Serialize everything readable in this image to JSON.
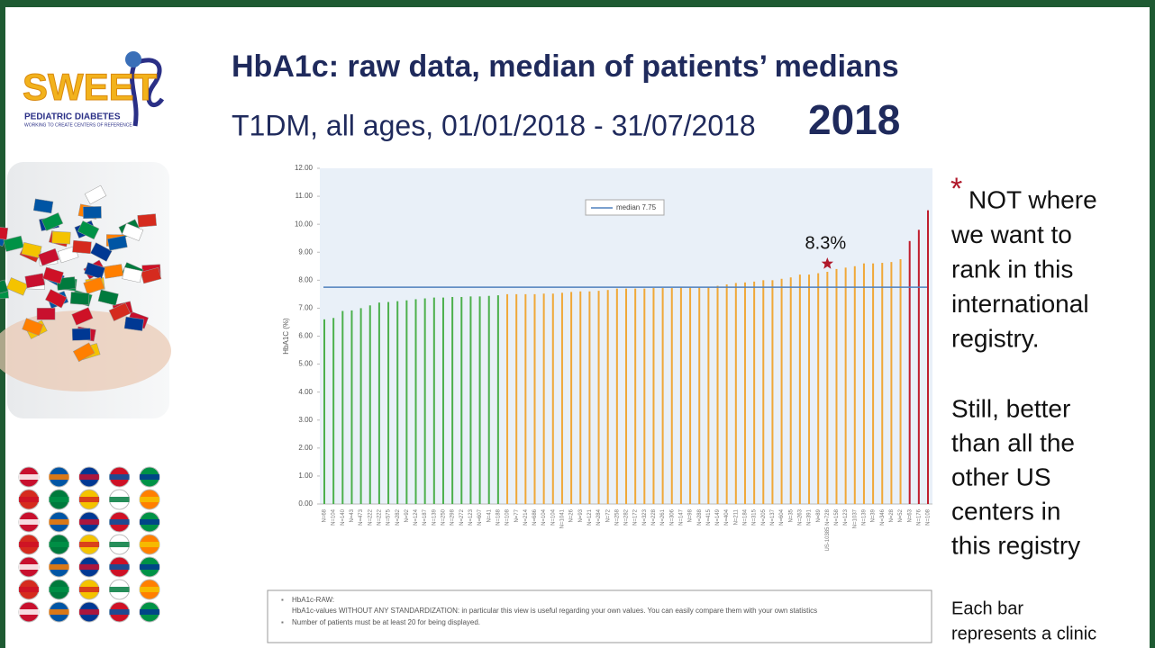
{
  "header": {
    "logo_word": "SWEET",
    "logo_line1": "PEDIATRIC DIABETES",
    "logo_line2": "WORKING TO CREATE CENTERS OF REFERENCE",
    "title": "HbA1c: raw data, median of patients’ medians",
    "subtitle": "T1DM, all ages, 01/01/2018 - 31/07/2018",
    "year": "2018"
  },
  "chart_data": {
    "type": "bar",
    "y_label": "HbA1C (%)",
    "ylim": [
      0,
      12
    ],
    "yticks": [
      {
        "value": 0,
        "label": "0.00"
      },
      {
        "value": 1,
        "label": "1.00"
      },
      {
        "value": 2,
        "label": "2.00"
      },
      {
        "value": 3,
        "label": "3.00"
      },
      {
        "value": 4,
        "label": "4.00"
      },
      {
        "value": 5,
        "label": "5.00"
      },
      {
        "value": 6,
        "label": "6.00"
      },
      {
        "value": 7,
        "label": "7.00"
      },
      {
        "value": 8,
        "label": "8.00"
      },
      {
        "value": 9,
        "label": "9.00"
      },
      {
        "value": 10,
        "label": "10.00"
      },
      {
        "value": 11,
        "label": "11.00"
      },
      {
        "value": 12,
        "label": "12.00"
      }
    ],
    "categories": [
      "N=68",
      "N=104",
      "N=140",
      "N=43",
      "N=473",
      "N=222",
      "N=222",
      "N=575",
      "N=282",
      "N=92",
      "N=124",
      "N=187",
      "N=139",
      "N=250",
      "N=298",
      "N=272",
      "N=123",
      "N=607",
      "N=41",
      "N=188",
      "N=108",
      "N=77",
      "N=214",
      "N=686",
      "N=104",
      "N=104",
      "N=1041",
      "N=26",
      "N=93",
      "N=121",
      "N=284",
      "N=72",
      "N=258",
      "N=282",
      "N=172",
      "N=323",
      "N=228",
      "N=261",
      "N=306",
      "N=147",
      "N=98",
      "N=288",
      "N=415",
      "N=149",
      "N=404",
      "N=211",
      "N=184",
      "N=315",
      "N=205",
      "N=137",
      "N=604",
      "N=35",
      "N=263",
      "N=391",
      "N=89",
      "US-10385 N=728",
      "N=158",
      "N=123",
      "N=1037",
      "N=139",
      "N=39",
      "N=346",
      "N=28",
      "N=52",
      "N=63",
      "N=176",
      "N=108"
    ],
    "values": [
      6.6,
      6.65,
      6.9,
      6.92,
      7.0,
      7.1,
      7.2,
      7.22,
      7.25,
      7.28,
      7.32,
      7.35,
      7.38,
      7.38,
      7.4,
      7.4,
      7.42,
      7.42,
      7.44,
      7.46,
      7.5,
      7.5,
      7.5,
      7.5,
      7.52,
      7.52,
      7.55,
      7.58,
      7.6,
      7.6,
      7.62,
      7.65,
      7.7,
      7.7,
      7.7,
      7.7,
      7.72,
      7.72,
      7.72,
      7.75,
      7.75,
      7.75,
      7.77,
      7.8,
      7.85,
      7.9,
      7.92,
      7.95,
      8.0,
      8.0,
      8.05,
      8.1,
      8.2,
      8.2,
      8.25,
      8.3,
      8.4,
      8.45,
      8.5,
      8.6,
      8.6,
      8.62,
      8.65,
      8.75,
      9.4,
      9.8,
      10.5
    ],
    "colors": [
      "#4cb04c",
      "#4cb04c",
      "#4cb04c",
      "#4cb04c",
      "#4cb04c",
      "#4cb04c",
      "#4cb04c",
      "#4cb04c",
      "#4cb04c",
      "#4cb04c",
      "#4cb04c",
      "#4cb04c",
      "#4cb04c",
      "#4cb04c",
      "#4cb04c",
      "#4cb04c",
      "#4cb04c",
      "#4cb04c",
      "#4cb04c",
      "#4cb04c",
      "#f0a838",
      "#f0a838",
      "#f0a838",
      "#f0a838",
      "#f0a838",
      "#f0a838",
      "#f0a838",
      "#f0a838",
      "#f0a838",
      "#f0a838",
      "#f0a838",
      "#f0a838",
      "#f0a838",
      "#f0a838",
      "#f0a838",
      "#f0a838",
      "#f0a838",
      "#f0a838",
      "#f0a838",
      "#f0a838",
      "#f0a838",
      "#f0a838",
      "#f0a838",
      "#f0a838",
      "#f0a838",
      "#f0a838",
      "#f0a838",
      "#f0a838",
      "#f0a838",
      "#f0a838",
      "#f0a838",
      "#f0a838",
      "#f0a838",
      "#f0a838",
      "#f0a838",
      "#f0a838",
      "#f0a838",
      "#f0a838",
      "#f0a838",
      "#f0a838",
      "#f0a838",
      "#f0a838",
      "#f0a838",
      "#f0a838",
      "#c01e2e",
      "#c01e2e",
      "#c01e2e"
    ],
    "median": 7.75,
    "median_label": "median 7.75",
    "median_color": "#4f81bd",
    "annotation": {
      "text": "8.3%",
      "value": 8.3,
      "color": "#b0182a"
    },
    "background": "#e9f0f8"
  },
  "side_note": {
    "asterisk": "*",
    "lines": [
      "NOT where",
      "we want to",
      "rank in this",
      "international",
      "registry.",
      "Still, better",
      "than all the",
      "other US",
      "centers in",
      "this registry"
    ]
  },
  "footnote": {
    "heading": "HbA1c-RAW:",
    "line1": "HbA1c-values WITHOUT ANY STANDARDIZATION:  in particular this view is useful regarding your own values. You can easily compare them with your own statistics",
    "line2": "Number of patients must be at least  20 for being displayed."
  },
  "caption": [
    "Each bar",
    "represents a clinic"
  ]
}
